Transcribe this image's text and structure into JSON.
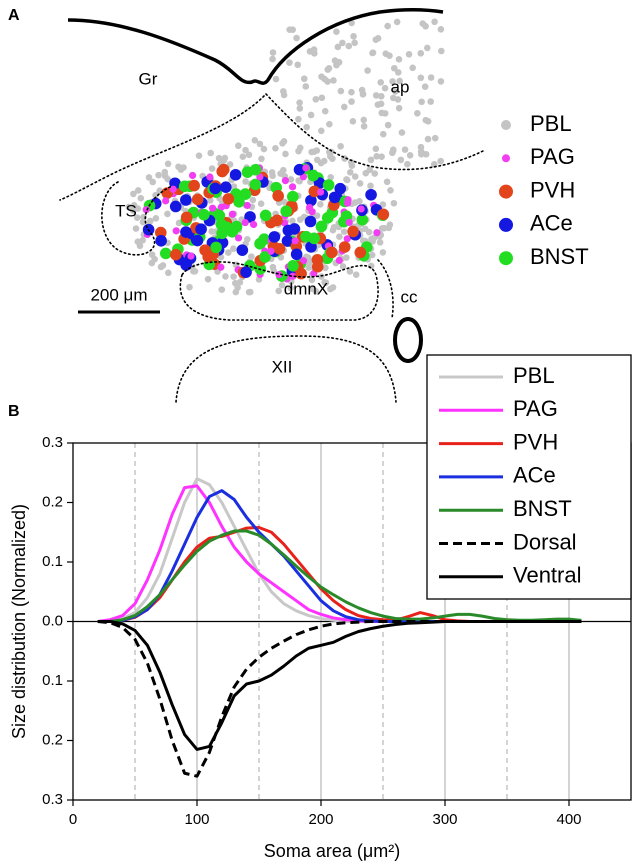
{
  "panels": {
    "a": "A",
    "b": "B"
  },
  "diagram": {
    "regions": {
      "gr": "Gr",
      "ap": "ap",
      "ts": "TS",
      "dmnx": "dmnX",
      "xii": "XII",
      "cc": "cc"
    },
    "scale_bar": "200 μm",
    "legend": [
      {
        "name": "PBL",
        "color": "#c4c4c4"
      },
      {
        "name": "PAG",
        "color": "#f23ef2"
      },
      {
        "name": "PVH",
        "color": "#e2451c"
      },
      {
        "name": "ACe",
        "color": "#1418e0"
      },
      {
        "name": "BNST",
        "color": "#22dd22"
      }
    ]
  },
  "chart_data": {
    "type": "line",
    "xlabel": "Soma area (μm²)",
    "ylabel": "Size distribution (Normalized)",
    "xlim": [
      0,
      450
    ],
    "ylim": [
      -0.3,
      0.3
    ],
    "xticks": [
      0,
      100,
      200,
      300,
      400
    ],
    "xgrid_minor": [
      50,
      150,
      250,
      350
    ],
    "yticks": [
      0.3,
      0.2,
      0.1,
      {
        "value": 0,
        "label": "0.0"
      },
      {
        "value": -0.1,
        "label": "0.1"
      },
      {
        "value": -0.2,
        "label": "0.2"
      },
      {
        "value": -0.3,
        "label": "0.3"
      }
    ],
    "grid": true,
    "zero_line": true,
    "legend": "upper right",
    "x": [
      20,
      30,
      40,
      50,
      60,
      70,
      80,
      90,
      100,
      110,
      120,
      130,
      140,
      150,
      160,
      170,
      180,
      190,
      200,
      210,
      220,
      230,
      240,
      250,
      260,
      270,
      280,
      290,
      300,
      310,
      320,
      330,
      340,
      350,
      360,
      370,
      380,
      390,
      400,
      410
    ],
    "series": [
      {
        "name": "PBL",
        "color": "#c8c8c8",
        "dash": false,
        "values": [
          0,
          0.002,
          0.005,
          0.015,
          0.04,
          0.08,
          0.14,
          0.2,
          0.24,
          0.23,
          0.2,
          0.16,
          0.12,
          0.08,
          0.05,
          0.03,
          0.018,
          0.01,
          0.005,
          0.002,
          0,
          0,
          0,
          0,
          0,
          0,
          0,
          0,
          0,
          0,
          0,
          0,
          0,
          0,
          0,
          0,
          0,
          0,
          0,
          0
        ]
      },
      {
        "name": "PAG",
        "color": "#ff33ff",
        "dash": false,
        "values": [
          0,
          0.003,
          0.01,
          0.03,
          0.07,
          0.12,
          0.18,
          0.225,
          0.228,
          0.2,
          0.16,
          0.125,
          0.1,
          0.08,
          0.065,
          0.05,
          0.035,
          0.02,
          0.012,
          0.006,
          0.003,
          0.001,
          0,
          0,
          0,
          0,
          0,
          0,
          0,
          0,
          0,
          0,
          0,
          0,
          0,
          0,
          0,
          0,
          0,
          0
        ]
      },
      {
        "name": "PVH",
        "color": "#e8221b",
        "dash": false,
        "values": [
          0,
          0,
          0.002,
          0.007,
          0.02,
          0.04,
          0.07,
          0.1,
          0.125,
          0.14,
          0.143,
          0.15,
          0.157,
          0.158,
          0.15,
          0.13,
          0.105,
          0.08,
          0.055,
          0.035,
          0.02,
          0.01,
          0.005,
          0.003,
          0.002,
          0.008,
          0.015,
          0.01,
          0.003,
          0.001,
          0,
          0,
          0,
          0,
          0,
          0,
          0,
          0,
          0,
          0
        ]
      },
      {
        "name": "ACe",
        "color": "#1a2fe0",
        "dash": false,
        "values": [
          0,
          0,
          0.002,
          0.008,
          0.02,
          0.045,
          0.085,
          0.13,
          0.175,
          0.21,
          0.22,
          0.205,
          0.175,
          0.15,
          0.13,
          0.11,
          0.085,
          0.06,
          0.035,
          0.018,
          0.008,
          0.003,
          0.001,
          0,
          0,
          0,
          0,
          0,
          0,
          0,
          0,
          0,
          0,
          0,
          0,
          0,
          0,
          0,
          0,
          0
        ]
      },
      {
        "name": "BNST",
        "color": "#2a8a2a",
        "dash": false,
        "values": [
          0,
          0,
          0.003,
          0.01,
          0.025,
          0.045,
          0.07,
          0.095,
          0.118,
          0.135,
          0.145,
          0.152,
          0.152,
          0.145,
          0.13,
          0.112,
          0.093,
          0.075,
          0.058,
          0.045,
          0.033,
          0.023,
          0.015,
          0.009,
          0.005,
          0.004,
          0.004,
          0.006,
          0.009,
          0.012,
          0.012,
          0.009,
          0.005,
          0.003,
          0.002,
          0.002,
          0.003,
          0.004,
          0.004,
          0.002
        ]
      },
      {
        "name": "Dorsal",
        "color": "#000000",
        "dash": true,
        "values": [
          0,
          -0.002,
          -0.01,
          -0.03,
          -0.07,
          -0.13,
          -0.2,
          -0.255,
          -0.26,
          -0.22,
          -0.16,
          -0.11,
          -0.08,
          -0.06,
          -0.045,
          -0.033,
          -0.022,
          -0.014,
          -0.008,
          -0.004,
          -0.002,
          -0.001,
          0,
          0,
          0,
          0,
          0,
          0,
          0,
          0,
          0,
          0,
          0,
          0,
          0,
          0,
          0,
          0,
          0,
          0
        ]
      },
      {
        "name": "Ventral",
        "color": "#000000",
        "dash": false,
        "values": [
          0,
          0,
          -0.004,
          -0.015,
          -0.04,
          -0.085,
          -0.14,
          -0.19,
          -0.215,
          -0.21,
          -0.17,
          -0.125,
          -0.105,
          -0.1,
          -0.09,
          -0.075,
          -0.058,
          -0.045,
          -0.04,
          -0.035,
          -0.025,
          -0.017,
          -0.012,
          -0.008,
          -0.005,
          -0.003,
          -0.002,
          -0.001,
          0,
          0,
          0,
          0,
          0,
          0,
          0,
          0,
          0,
          0,
          0,
          0
        ]
      }
    ]
  }
}
